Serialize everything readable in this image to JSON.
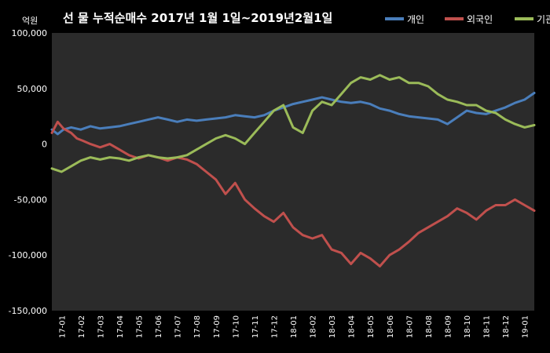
{
  "chart_data": {
    "type": "line",
    "title": "선 물 누적순매수 2017년 1월 1일~2019년2월1일",
    "unit_label": "억원",
    "ylim": [
      -150000,
      100000
    ],
    "yticks": [
      100000,
      50000,
      0,
      -50000,
      -100000,
      -150000
    ],
    "ytick_labels": [
      "100,000",
      "50,000",
      "0",
      "-50,000",
      "-100,000",
      "-150,000"
    ],
    "xticks": [
      "17-01",
      "17-02",
      "17-03",
      "17-04",
      "17-05",
      "17-06",
      "17-07",
      "17-08",
      "17-09",
      "17-10",
      "17-11",
      "17-12",
      "18-01",
      "18-02",
      "18-03",
      "18-04",
      "18-05",
      "18-06",
      "18-07",
      "18-08",
      "18-09",
      "18-10",
      "18-11",
      "18-12",
      "19-01"
    ],
    "x_end": 25,
    "legend_position": "top-right",
    "series": [
      {
        "name": "개인",
        "color": "#4a7ebb",
        "points": [
          [
            0,
            13000
          ],
          [
            0.3,
            9000
          ],
          [
            0.6,
            13000
          ],
          [
            1,
            15000
          ],
          [
            1.5,
            13000
          ],
          [
            2,
            16000
          ],
          [
            2.5,
            14000
          ],
          [
            3,
            15000
          ],
          [
            3.5,
            16000
          ],
          [
            4,
            18000
          ],
          [
            4.5,
            20000
          ],
          [
            5,
            22000
          ],
          [
            5.5,
            24000
          ],
          [
            6,
            22000
          ],
          [
            6.5,
            20000
          ],
          [
            7,
            22000
          ],
          [
            7.5,
            21000
          ],
          [
            8,
            22000
          ],
          [
            8.5,
            23000
          ],
          [
            9,
            24000
          ],
          [
            9.5,
            26000
          ],
          [
            10,
            25000
          ],
          [
            10.5,
            24000
          ],
          [
            11,
            26000
          ],
          [
            11.5,
            30000
          ],
          [
            12,
            33000
          ],
          [
            12.5,
            36000
          ],
          [
            13,
            38000
          ],
          [
            13.5,
            40000
          ],
          [
            14,
            42000
          ],
          [
            14.5,
            40000
          ],
          [
            15,
            38000
          ],
          [
            15.5,
            37000
          ],
          [
            16,
            38000
          ],
          [
            16.5,
            36000
          ],
          [
            17,
            32000
          ],
          [
            17.5,
            30000
          ],
          [
            18,
            27000
          ],
          [
            18.5,
            25000
          ],
          [
            19,
            24000
          ],
          [
            19.5,
            23000
          ],
          [
            20,
            22000
          ],
          [
            20.5,
            18000
          ],
          [
            21,
            24000
          ],
          [
            21.5,
            30000
          ],
          [
            22,
            28000
          ],
          [
            22.5,
            27000
          ],
          [
            23,
            30000
          ],
          [
            23.5,
            33000
          ],
          [
            24,
            37000
          ],
          [
            24.5,
            40000
          ],
          [
            25,
            46000
          ]
        ]
      },
      {
        "name": "외국인",
        "color": "#c0504d",
        "points": [
          [
            0,
            10000
          ],
          [
            0.3,
            20000
          ],
          [
            0.6,
            14000
          ],
          [
            1,
            10000
          ],
          [
            1.3,
            5000
          ],
          [
            1.6,
            3000
          ],
          [
            2,
            0
          ],
          [
            2.5,
            -3000
          ],
          [
            3,
            0
          ],
          [
            3.5,
            -5000
          ],
          [
            4,
            -10000
          ],
          [
            4.5,
            -13000
          ],
          [
            5,
            -10000
          ],
          [
            5.5,
            -12000
          ],
          [
            6,
            -15000
          ],
          [
            6.5,
            -12000
          ],
          [
            7,
            -14000
          ],
          [
            7.5,
            -18000
          ],
          [
            8,
            -25000
          ],
          [
            8.5,
            -32000
          ],
          [
            9,
            -45000
          ],
          [
            9.5,
            -35000
          ],
          [
            10,
            -50000
          ],
          [
            10.5,
            -58000
          ],
          [
            11,
            -65000
          ],
          [
            11.5,
            -70000
          ],
          [
            12,
            -62000
          ],
          [
            12.5,
            -75000
          ],
          [
            13,
            -82000
          ],
          [
            13.5,
            -85000
          ],
          [
            14,
            -82000
          ],
          [
            14.5,
            -95000
          ],
          [
            15,
            -98000
          ],
          [
            15.5,
            -108000
          ],
          [
            16,
            -98000
          ],
          [
            16.5,
            -103000
          ],
          [
            17,
            -110000
          ],
          [
            17.5,
            -100000
          ],
          [
            18,
            -95000
          ],
          [
            18.5,
            -88000
          ],
          [
            19,
            -80000
          ],
          [
            19.5,
            -75000
          ],
          [
            20,
            -70000
          ],
          [
            20.5,
            -65000
          ],
          [
            21,
            -58000
          ],
          [
            21.5,
            -62000
          ],
          [
            22,
            -68000
          ],
          [
            22.5,
            -60000
          ],
          [
            23,
            -55000
          ],
          [
            23.5,
            -55000
          ],
          [
            24,
            -50000
          ],
          [
            24.5,
            -55000
          ],
          [
            25,
            -60000
          ]
        ]
      },
      {
        "name": "기관",
        "color": "#9bbb59",
        "points": [
          [
            0,
            -22000
          ],
          [
            0.5,
            -25000
          ],
          [
            1,
            -20000
          ],
          [
            1.5,
            -15000
          ],
          [
            2,
            -12000
          ],
          [
            2.5,
            -14000
          ],
          [
            3,
            -12000
          ],
          [
            3.5,
            -13000
          ],
          [
            4,
            -15000
          ],
          [
            4.5,
            -12000
          ],
          [
            5,
            -10000
          ],
          [
            5.5,
            -12000
          ],
          [
            6,
            -13000
          ],
          [
            6.5,
            -12000
          ],
          [
            7,
            -10000
          ],
          [
            7.5,
            -5000
          ],
          [
            8,
            0
          ],
          [
            8.5,
            5000
          ],
          [
            9,
            8000
          ],
          [
            9.5,
            5000
          ],
          [
            10,
            0
          ],
          [
            10.5,
            10000
          ],
          [
            11,
            20000
          ],
          [
            11.5,
            30000
          ],
          [
            12,
            35000
          ],
          [
            12.5,
            15000
          ],
          [
            13,
            10000
          ],
          [
            13.5,
            30000
          ],
          [
            14,
            38000
          ],
          [
            14.5,
            35000
          ],
          [
            15,
            45000
          ],
          [
            15.5,
            55000
          ],
          [
            16,
            60000
          ],
          [
            16.5,
            58000
          ],
          [
            17,
            62000
          ],
          [
            17.5,
            58000
          ],
          [
            18,
            60000
          ],
          [
            18.5,
            55000
          ],
          [
            19,
            55000
          ],
          [
            19.5,
            52000
          ],
          [
            20,
            45000
          ],
          [
            20.5,
            40000
          ],
          [
            21,
            38000
          ],
          [
            21.5,
            35000
          ],
          [
            22,
            35000
          ],
          [
            22.5,
            30000
          ],
          [
            23,
            28000
          ],
          [
            23.5,
            22000
          ],
          [
            24,
            18000
          ],
          [
            24.5,
            15000
          ],
          [
            25,
            17000
          ]
        ]
      }
    ]
  }
}
